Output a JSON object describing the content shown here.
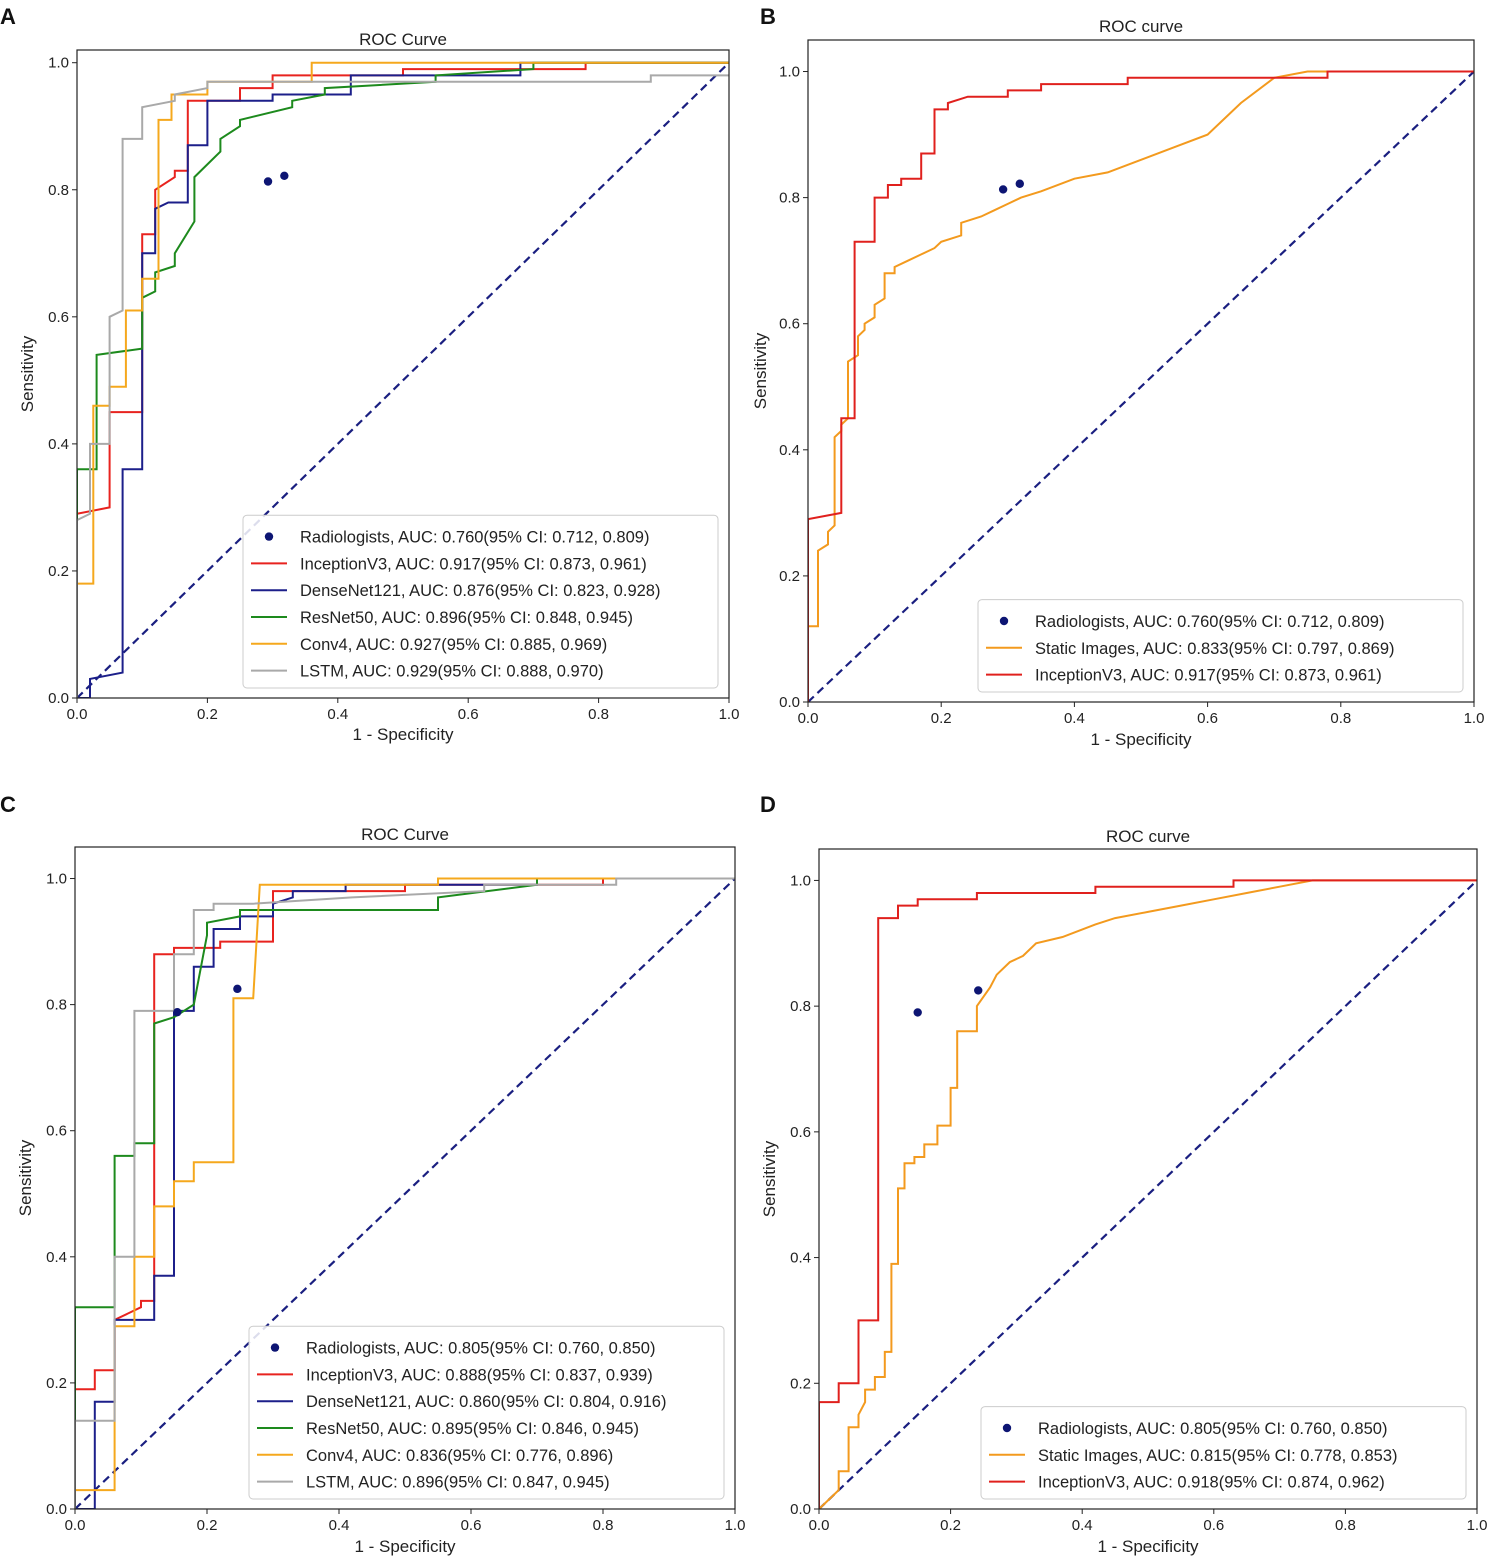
{
  "colors": {
    "radiologists": "#0d1573",
    "inception": "#e8231f",
    "densenet": "#1c1f8a",
    "resnet": "#1d8a1d",
    "conv4": "#f5a81d",
    "lstm": "#a9a9a9",
    "static": "#f39a1e",
    "inception_bc": "#e0201d",
    "diagonal": "#1a1f80"
  },
  "chart_data": [
    {
      "panel": "A",
      "type": "line",
      "title": "ROC Curve",
      "xlabel": "1 - Specificity",
      "ylabel": "Sensitivity",
      "xlim": [
        0,
        1
      ],
      "ylim": [
        0,
        1.02
      ],
      "xticks": [
        "0.0",
        "0.2",
        "0.4",
        "0.6",
        "0.8",
        "1.0"
      ],
      "yticks": [
        "0.0",
        "0.2",
        "0.4",
        "0.6",
        "0.8",
        "1.0"
      ],
      "legend_position": "lower-right",
      "points": {
        "name": "Radiologists, AUC: 0.760(95% CI: 0.712, 0.809)",
        "color_key": "radiologists",
        "x": [
          0.293,
          0.318
        ],
        "y": [
          0.813,
          0.822
        ]
      },
      "series": [
        {
          "name": "InceptionV3, AUC: 0.917(95% CI: 0.873, 0.961)",
          "color_key": "inception",
          "x": [
            0,
            0,
            0.05,
            0.05,
            0.1,
            0.1,
            0.12,
            0.12,
            0.15,
            0.15,
            0.17,
            0.17,
            0.25,
            0.25,
            0.3,
            0.3,
            0.5,
            0.5,
            0.78,
            0.78,
            1
          ],
          "y": [
            0,
            0.29,
            0.3,
            0.45,
            0.45,
            0.73,
            0.73,
            0.8,
            0.82,
            0.83,
            0.83,
            0.94,
            0.94,
            0.96,
            0.96,
            0.98,
            0.98,
            0.99,
            0.99,
            1.0,
            1.0
          ]
        },
        {
          "name": "DenseNet121, AUC: 0.876(95% CI: 0.823, 0.928)",
          "color_key": "densenet",
          "x": [
            0,
            0.02,
            0.02,
            0.07,
            0.07,
            0.1,
            0.1,
            0.12,
            0.12,
            0.14,
            0.14,
            0.17,
            0.17,
            0.2,
            0.2,
            0.3,
            0.3,
            0.42,
            0.42,
            0.68,
            0.68,
            1
          ],
          "y": [
            0,
            0,
            0.03,
            0.04,
            0.36,
            0.36,
            0.7,
            0.7,
            0.77,
            0.78,
            0.78,
            0.78,
            0.87,
            0.87,
            0.94,
            0.94,
            0.95,
            0.95,
            0.98,
            0.98,
            1.0,
            1.0
          ]
        },
        {
          "name": "ResNet50, AUC: 0.896(95% CI: 0.848, 0.945)",
          "color_key": "resnet",
          "x": [
            0,
            0,
            0.03,
            0.03,
            0.1,
            0.1,
            0.12,
            0.12,
            0.15,
            0.15,
            0.18,
            0.18,
            0.22,
            0.22,
            0.25,
            0.25,
            0.33,
            0.33,
            0.38,
            0.38,
            0.55,
            0.55,
            0.7,
            0.7,
            1
          ],
          "y": [
            0,
            0.36,
            0.36,
            0.54,
            0.55,
            0.63,
            0.64,
            0.67,
            0.68,
            0.7,
            0.75,
            0.82,
            0.86,
            0.88,
            0.9,
            0.91,
            0.93,
            0.94,
            0.95,
            0.96,
            0.97,
            0.98,
            0.99,
            1.0,
            1.0
          ]
        },
        {
          "name": "Conv4, AUC: 0.927(95% CI: 0.885, 0.969)",
          "color_key": "conv4",
          "x": [
            0,
            0,
            0.025,
            0.025,
            0.05,
            0.05,
            0.075,
            0.075,
            0.1,
            0.1,
            0.125,
            0.125,
            0.145,
            0.145,
            0.2,
            0.2,
            0.36,
            0.36,
            1
          ],
          "y": [
            0,
            0.18,
            0.18,
            0.46,
            0.46,
            0.49,
            0.49,
            0.61,
            0.61,
            0.66,
            0.66,
            0.91,
            0.91,
            0.95,
            0.95,
            0.97,
            0.97,
            1.0,
            1.0
          ]
        },
        {
          "name": "LSTM, AUC: 0.929(95% CI: 0.888, 0.970)",
          "color_key": "lstm",
          "x": [
            0,
            0,
            0.02,
            0.02,
            0.05,
            0.05,
            0.07,
            0.07,
            0.1,
            0.1,
            0.15,
            0.15,
            0.2,
            0.2,
            0.3,
            0.3,
            0.88,
            0.88,
            1
          ],
          "y": [
            0,
            0.28,
            0.29,
            0.4,
            0.4,
            0.6,
            0.61,
            0.88,
            0.88,
            0.93,
            0.94,
            0.95,
            0.96,
            0.97,
            0.97,
            0.97,
            0.97,
            0.98,
            0.98
          ]
        }
      ]
    },
    {
      "panel": "B",
      "type": "line",
      "title": "ROC curve",
      "xlabel": "1 - Specificity",
      "ylabel": "Sensitivity",
      "xlim": [
        0,
        1
      ],
      "ylim": [
        0,
        1.05
      ],
      "xticks": [
        "0.0",
        "0.2",
        "0.4",
        "0.6",
        "0.8",
        "1.0"
      ],
      "yticks": [
        "0.0",
        "0.2",
        "0.4",
        "0.6",
        "0.8",
        "1.0"
      ],
      "legend_position": "lower-right",
      "points": {
        "name": "Radiologists, AUC: 0.760(95% CI: 0.712, 0.809)",
        "color_key": "radiologists",
        "x": [
          0.293,
          0.318
        ],
        "y": [
          0.813,
          0.822
        ]
      },
      "series": [
        {
          "name": "Static Images, AUC: 0.833(95% CI: 0.797, 0.869)",
          "color_key": "static",
          "x": [
            0,
            0,
            0.015,
            0.015,
            0.03,
            0.03,
            0.04,
            0.04,
            0.05,
            0.05,
            0.06,
            0.06,
            0.075,
            0.075,
            0.085,
            0.085,
            0.1,
            0.1,
            0.115,
            0.115,
            0.13,
            0.13,
            0.15,
            0.17,
            0.19,
            0.2,
            0.23,
            0.23,
            0.26,
            0.28,
            0.3,
            0.32,
            0.35,
            0.4,
            0.45,
            0.5,
            0.55,
            0.6,
            0.62,
            0.65,
            0.7,
            0.75,
            0.8,
            1.0
          ],
          "y": [
            0,
            0.12,
            0.12,
            0.24,
            0.25,
            0.27,
            0.28,
            0.42,
            0.43,
            0.44,
            0.45,
            0.54,
            0.55,
            0.58,
            0.59,
            0.6,
            0.61,
            0.63,
            0.64,
            0.68,
            0.68,
            0.69,
            0.7,
            0.71,
            0.72,
            0.73,
            0.74,
            0.76,
            0.77,
            0.78,
            0.79,
            0.8,
            0.81,
            0.83,
            0.84,
            0.86,
            0.88,
            0.9,
            0.92,
            0.95,
            0.99,
            1.0,
            1.0,
            1.0
          ]
        },
        {
          "name": "InceptionV3, AUC: 0.917(95% CI: 0.873, 0.961)",
          "color_key": "inception_bc",
          "x": [
            0,
            0,
            0.05,
            0.05,
            0.07,
            0.07,
            0.1,
            0.1,
            0.12,
            0.12,
            0.14,
            0.14,
            0.17,
            0.17,
            0.19,
            0.19,
            0.21,
            0.21,
            0.24,
            0.24,
            0.3,
            0.3,
            0.35,
            0.35,
            0.48,
            0.48,
            0.78,
            0.78,
            1
          ],
          "y": [
            0,
            0.29,
            0.3,
            0.45,
            0.45,
            0.73,
            0.73,
            0.8,
            0.8,
            0.82,
            0.82,
            0.83,
            0.83,
            0.87,
            0.87,
            0.94,
            0.94,
            0.95,
            0.96,
            0.96,
            0.96,
            0.97,
            0.97,
            0.98,
            0.98,
            0.99,
            0.99,
            1.0,
            1.0
          ]
        }
      ]
    },
    {
      "panel": "C",
      "type": "line",
      "title": "ROC Curve",
      "xlabel": "1 - Specificity",
      "ylabel": "Sensitivity",
      "xlim": [
        0,
        1
      ],
      "ylim": [
        0,
        1.05
      ],
      "xticks": [
        "0.0",
        "0.2",
        "0.4",
        "0.6",
        "0.8",
        "1.0"
      ],
      "yticks": [
        "0.0",
        "0.2",
        "0.4",
        "0.6",
        "0.8",
        "1.0"
      ],
      "legend_position": "lower-right",
      "points": {
        "name": "Radiologists, AUC: 0.805(95% CI: 0.760, 0.850)",
        "color_key": "radiologists",
        "x": [
          0.155,
          0.246
        ],
        "y": [
          0.788,
          0.825
        ]
      },
      "series": [
        {
          "name": "InceptionV3, AUC: 0.888(95% CI: 0.837, 0.939)",
          "color_key": "inception",
          "x": [
            0,
            0,
            0.03,
            0.03,
            0.06,
            0.06,
            0.1,
            0.1,
            0.12,
            0.12,
            0.15,
            0.15,
            0.22,
            0.22,
            0.3,
            0.3,
            0.5,
            0.5,
            0.8,
            0.8,
            1
          ],
          "y": [
            0,
            0.19,
            0.19,
            0.22,
            0.22,
            0.3,
            0.32,
            0.33,
            0.33,
            0.88,
            0.88,
            0.89,
            0.89,
            0.9,
            0.9,
            0.98,
            0.98,
            0.99,
            0.99,
            1.0,
            1.0
          ]
        },
        {
          "name": "DenseNet121, AUC: 0.860(95% CI: 0.804, 0.916)",
          "color_key": "densenet",
          "x": [
            0,
            0.03,
            0.03,
            0.06,
            0.06,
            0.12,
            0.12,
            0.15,
            0.15,
            0.18,
            0.18,
            0.21,
            0.21,
            0.25,
            0.25,
            0.3,
            0.3,
            0.33,
            0.33,
            0.41,
            0.41,
            0.7,
            0.7,
            1
          ],
          "y": [
            0,
            0,
            0.17,
            0.17,
            0.3,
            0.3,
            0.37,
            0.37,
            0.79,
            0.79,
            0.86,
            0.86,
            0.92,
            0.92,
            0.94,
            0.94,
            0.96,
            0.97,
            0.98,
            0.98,
            0.99,
            0.99,
            1.0,
            1.0
          ]
        },
        {
          "name": "ResNet50, AUC: 0.895(95% CI: 0.846, 0.945)",
          "color_key": "resnet",
          "x": [
            0,
            0,
            0.06,
            0.06,
            0.09,
            0.09,
            0.12,
            0.12,
            0.15,
            0.15,
            0.18,
            0.18,
            0.2,
            0.2,
            0.25,
            0.25,
            0.55,
            0.55,
            0.7,
            0.7,
            1
          ],
          "y": [
            0,
            0.32,
            0.32,
            0.56,
            0.56,
            0.58,
            0.58,
            0.77,
            0.78,
            0.78,
            0.8,
            0.8,
            0.91,
            0.93,
            0.94,
            0.95,
            0.95,
            0.97,
            0.99,
            1.0,
            1.0
          ]
        },
        {
          "name": "Conv4, AUC: 0.836(95% CI: 0.776, 0.896)",
          "color_key": "conv4",
          "x": [
            0,
            0,
            0.06,
            0.06,
            0.09,
            0.09,
            0.12,
            0.12,
            0.15,
            0.15,
            0.18,
            0.18,
            0.24,
            0.24,
            0.27,
            0.27,
            0.28,
            0.28,
            0.55,
            0.55,
            0.8,
            0.8,
            1
          ],
          "y": [
            0,
            0.03,
            0.03,
            0.29,
            0.29,
            0.4,
            0.4,
            0.48,
            0.48,
            0.52,
            0.52,
            0.55,
            0.55,
            0.81,
            0.81,
            0.81,
            0.99,
            0.99,
            0.99,
            1.0,
            1.0,
            1.0,
            1.0
          ]
        },
        {
          "name": "LSTM, AUC: 0.896(95% CI: 0.847, 0.945)",
          "color_key": "lstm",
          "x": [
            0,
            0,
            0.06,
            0.06,
            0.09,
            0.09,
            0.15,
            0.15,
            0.18,
            0.18,
            0.21,
            0.21,
            0.27,
            0.27,
            0.42,
            0.42,
            0.62,
            0.62,
            0.82,
            0.82,
            1
          ],
          "y": [
            0,
            0.14,
            0.14,
            0.4,
            0.4,
            0.79,
            0.79,
            0.88,
            0.88,
            0.95,
            0.95,
            0.96,
            0.96,
            0.96,
            0.97,
            0.97,
            0.98,
            0.99,
            0.99,
            1.0,
            1.0
          ]
        }
      ]
    },
    {
      "panel": "D",
      "type": "line",
      "title": "ROC curve",
      "xlabel": "1 - Specificity",
      "ylabel": "Sensitivity",
      "xlim": [
        0,
        1
      ],
      "ylim": [
        0,
        1.05
      ],
      "xticks": [
        "0.0",
        "0.2",
        "0.4",
        "0.6",
        "0.8",
        "1.0"
      ],
      "yticks": [
        "0.0",
        "0.2",
        "0.4",
        "0.6",
        "0.8",
        "1.0"
      ],
      "legend_position": "lower-right",
      "points": {
        "name": "Radiologists, AUC: 0.805(95% CI: 0.760, 0.850)",
        "color_key": "radiologists",
        "x": [
          0.15,
          0.242
        ],
        "y": [
          0.79,
          0.825
        ]
      },
      "series": [
        {
          "name": "Static Images, AUC: 0.815(95% CI: 0.778, 0.853)",
          "color_key": "static",
          "x": [
            0,
            0.02,
            0.03,
            0.03,
            0.045,
            0.045,
            0.06,
            0.06,
            0.07,
            0.07,
            0.085,
            0.085,
            0.1,
            0.1,
            0.11,
            0.11,
            0.12,
            0.12,
            0.13,
            0.13,
            0.145,
            0.145,
            0.16,
            0.16,
            0.18,
            0.18,
            0.2,
            0.2,
            0.21,
            0.21,
            0.22,
            0.22,
            0.24,
            0.24,
            0.26,
            0.27,
            0.29,
            0.31,
            0.33,
            0.37,
            0.42,
            0.45,
            0.5,
            0.55,
            0.6,
            0.65,
            0.7,
            0.75,
            0.8,
            1.0
          ],
          "y": [
            0,
            0.02,
            0.03,
            0.06,
            0.06,
            0.13,
            0.13,
            0.15,
            0.17,
            0.19,
            0.19,
            0.21,
            0.21,
            0.25,
            0.25,
            0.39,
            0.39,
            0.51,
            0.51,
            0.55,
            0.55,
            0.56,
            0.56,
            0.58,
            0.58,
            0.61,
            0.61,
            0.67,
            0.67,
            0.76,
            0.76,
            0.76,
            0.76,
            0.8,
            0.83,
            0.85,
            0.87,
            0.88,
            0.9,
            0.91,
            0.93,
            0.94,
            0.95,
            0.96,
            0.97,
            0.98,
            0.99,
            1.0,
            1.0,
            1.0
          ]
        },
        {
          "name": "InceptionV3, AUC: 0.918(95% CI: 0.874, 0.962)",
          "color_key": "inception_bc",
          "x": [
            0,
            0,
            0.03,
            0.03,
            0.06,
            0.06,
            0.09,
            0.09,
            0.12,
            0.12,
            0.15,
            0.15,
            0.24,
            0.24,
            0.27,
            0.27,
            0.42,
            0.42,
            0.63,
            0.63,
            0.8,
            0.8,
            1
          ],
          "y": [
            0,
            0.17,
            0.17,
            0.2,
            0.2,
            0.3,
            0.3,
            0.94,
            0.94,
            0.96,
            0.96,
            0.97,
            0.97,
            0.98,
            0.98,
            0.98,
            0.98,
            0.99,
            0.99,
            1.0,
            1.0,
            1.0,
            1.0
          ]
        }
      ]
    }
  ]
}
